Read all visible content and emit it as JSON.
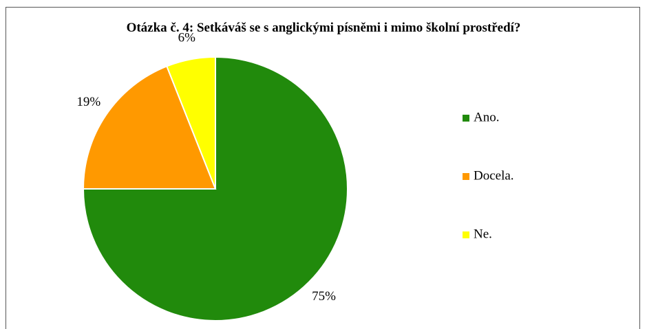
{
  "chart_data": {
    "type": "pie",
    "title": "Otázka č. 4: Setkáváš se s anglickými písněmi i mimo školní prostředí?",
    "categories": [
      "Ano.",
      "Docela.",
      "Ne."
    ],
    "values": [
      75,
      19,
      6
    ],
    "value_labels": [
      "75%",
      "19%",
      "6%"
    ],
    "colors": [
      "#218a0c",
      "#ff9900",
      "#ffff00"
    ],
    "legend": "right"
  }
}
